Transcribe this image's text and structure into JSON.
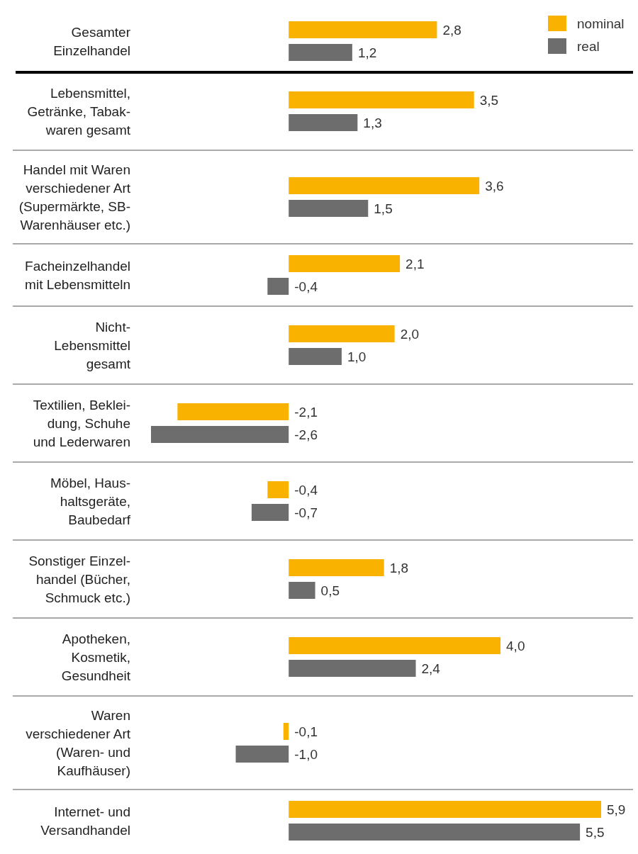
{
  "chart_data": {
    "type": "bar",
    "orientation": "horizontal",
    "legend": "top right",
    "categories": [
      "Gesamter\nEinzelhandel",
      "Lebensmittel,\nGetränke, Tabak-\nwaren gesamt",
      "Handel mit Waren\nverschiedener Art\n(Supermärkte, SB-\nWarenhäuser etc.)",
      "Facheinzelhandel\nmit Lebensmitteln",
      "Nicht-\nLebensmittel\ngesamt",
      "Textilien, Beklei-\ndung, Schuhe\nund Lederwaren",
      "Möbel, Haus-\nhaltsgeräte,\nBaubedarf",
      "Sonstiger Einzel-\nhandel (Bücher,\nSchmuck etc.)",
      "Apotheken,\nKosmetik,\nGesundheit",
      "Waren\nverschiedener Art\n(Waren- und\nKaufhäuser)",
      "Internet- und\nVersandhandel"
    ],
    "series": [
      {
        "name": "nominal",
        "color": "#f9b200",
        "values": [
          2.8,
          3.5,
          3.6,
          2.1,
          2.0,
          -2.1,
          -0.4,
          1.8,
          4.0,
          -0.1,
          5.9
        ],
        "value_labels": [
          "2,8",
          "3,5",
          "3,6",
          "2,1",
          "2,0",
          "-2,1",
          "-0,4",
          "1,8",
          "4,0",
          "-0,1",
          "5,9"
        ]
      },
      {
        "name": "real",
        "color": "#6d6d6d",
        "values": [
          1.2,
          1.3,
          1.5,
          -0.4,
          1.0,
          -2.6,
          -0.7,
          0.5,
          2.4,
          -1.0,
          5.5
        ],
        "value_labels": [
          "1,2",
          "1,3",
          "1,5",
          "-0,4",
          "1,0",
          "-2,6",
          "-0,7",
          "0,5",
          "2,4",
          "-1,0",
          "5,5"
        ]
      }
    ]
  }
}
